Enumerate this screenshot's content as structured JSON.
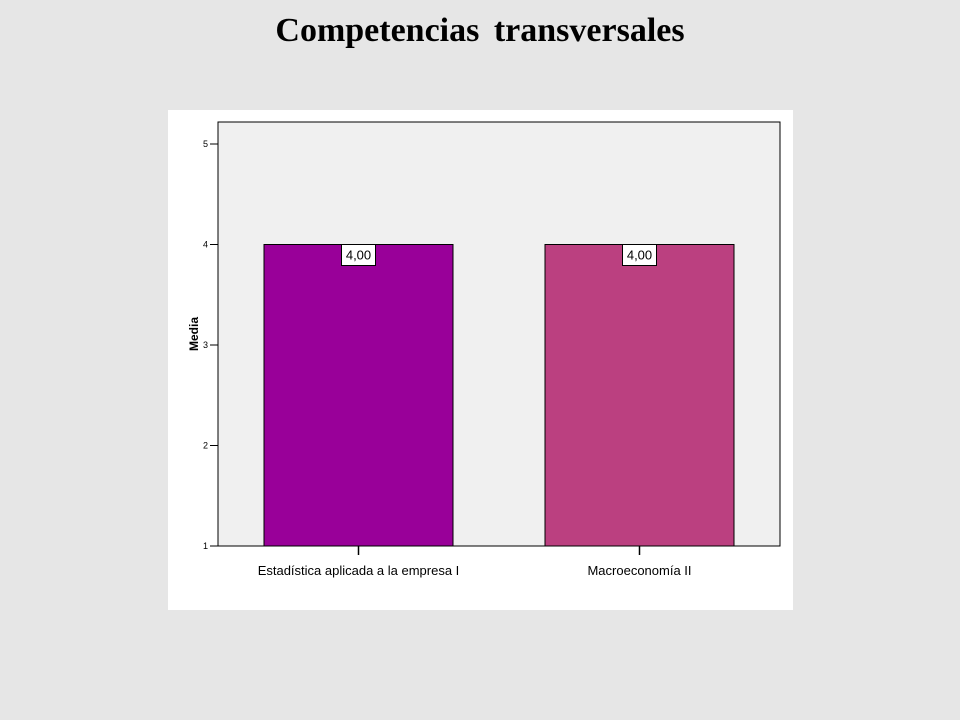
{
  "slide": {
    "title": "Competencias transversales"
  },
  "chart_data": {
    "type": "bar",
    "categories": [
      "Estadística aplicada a la empresa I",
      "Macroeconomía II"
    ],
    "values": [
      4.0,
      4.0
    ],
    "data_labels": [
      "4,00",
      "4,00"
    ],
    "ylabel": "Media",
    "xlabel": "",
    "ylim": [
      1,
      5
    ],
    "yticks": [
      1,
      2,
      3,
      4,
      5
    ],
    "ytick_labels": [
      "1",
      "2",
      "3",
      "4",
      "5"
    ],
    "colors": [
      "#990099",
      "#bb4080"
    ],
    "plot_background": "#f0f0f0",
    "grid": false,
    "legend": "none"
  }
}
